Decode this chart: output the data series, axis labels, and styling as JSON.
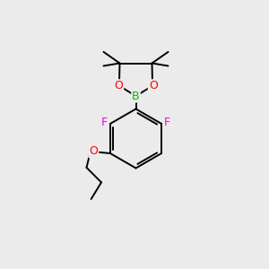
{
  "bg_color": "#ebebeb",
  "bond_color": "#000000",
  "bond_width": 1.4,
  "atom_colors": {
    "B": "#00bb00",
    "O": "#ff0000",
    "F": "#ee00ee",
    "C": "#000000"
  }
}
